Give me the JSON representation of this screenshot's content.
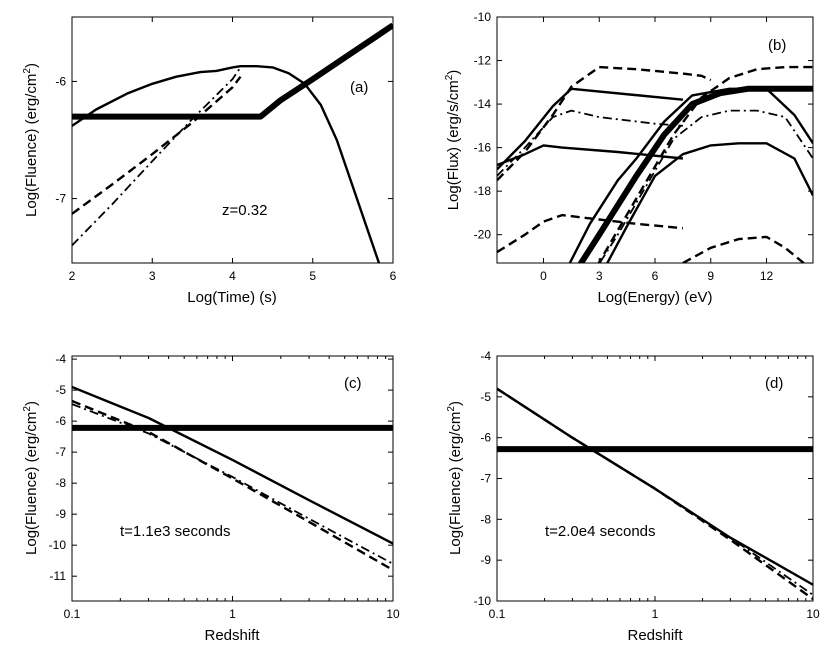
{
  "chart_data": [
    {
      "type": "line",
      "panel": "(a)",
      "xlabel": "Log(Time) (s)",
      "ylabel": "Log(Fluence) (erg/cm",
      "ylabel_sup": "2",
      "ylabel_end": ")",
      "xlim": [
        2,
        6
      ],
      "ylim": [
        -7.55,
        -5.45
      ],
      "xscale": "linear",
      "xticks": [
        2,
        3,
        4,
        5,
        6
      ],
      "xtick_labels": [
        "2",
        "3",
        "4",
        "5",
        "6"
      ],
      "yticks": [
        -7,
        -6
      ],
      "ytick_labels": [
        "-7",
        "-6"
      ],
      "annotation": "z=0.32",
      "series": [
        {
          "name": "solid",
          "style": "solid",
          "x": [
            2.0,
            2.3,
            2.7,
            3.0,
            3.3,
            3.6,
            3.8,
            4.0,
            4.1,
            4.3,
            4.5,
            4.7,
            4.9,
            5.1,
            5.3,
            5.5,
            5.7,
            5.85
          ],
          "y": [
            -6.38,
            -6.24,
            -6.1,
            -6.02,
            -5.96,
            -5.92,
            -5.91,
            -5.88,
            -5.87,
            -5.87,
            -5.88,
            -5.93,
            -6.02,
            -6.2,
            -6.5,
            -6.9,
            -7.3,
            -7.6
          ]
        },
        {
          "name": "dashed",
          "style": "dashed",
          "x": [
            2.0,
            2.5,
            3.0,
            3.5,
            4.0,
            4.1
          ],
          "y": [
            -7.13,
            -6.88,
            -6.62,
            -6.35,
            -6.05,
            -5.96
          ]
        },
        {
          "name": "dash-dot",
          "style": "dashdot",
          "x": [
            2.0,
            2.5,
            3.0,
            3.5,
            4.0,
            4.1
          ],
          "y": [
            -7.4,
            -7.05,
            -6.68,
            -6.32,
            -5.98,
            -5.88
          ]
        },
        {
          "name": "thick",
          "style": "thick",
          "x": [
            2.0,
            4.35,
            4.6,
            5.0,
            5.5,
            6.0
          ],
          "y": [
            -6.3,
            -6.3,
            -6.16,
            -5.98,
            -5.75,
            -5.52
          ]
        }
      ]
    },
    {
      "type": "line",
      "panel": "(b)",
      "xlabel": "Log(Energy) (eV)",
      "ylabel": "Log(Flux) (erg/s/cm",
      "ylabel_sup": "2",
      "ylabel_end": ")",
      "xlim": [
        -2.5,
        14.5
      ],
      "ylim": [
        -21.3,
        -10
      ],
      "xscale": "linear",
      "xticks": [
        0,
        3,
        6,
        9,
        12
      ],
      "xtick_labels": [
        "0",
        "3",
        "6",
        "9",
        "12"
      ],
      "yticks": [
        -20,
        -18,
        -16,
        -14,
        -12,
        -10
      ],
      "ytick_labels": [
        "-20",
        "-18",
        "-16",
        "-14",
        "-12",
        "-10"
      ],
      "series": [
        {
          "name": "dashed-top",
          "style": "dashed",
          "x": [
            -2.5,
            -1,
            0.5,
            1.5,
            3,
            5,
            7.5,
            8.5,
            9
          ],
          "y": [
            -17.5,
            -16.2,
            -14.5,
            -13.2,
            -12.3,
            -12.4,
            -12.6,
            -12.7,
            -12.9
          ]
        },
        {
          "name": "solid-upper",
          "style": "solid",
          "x": [
            -2.5,
            -1,
            0.5,
            1.5,
            7.5
          ],
          "y": [
            -17.0,
            -15.7,
            -14.1,
            -13.3,
            -13.8
          ]
        },
        {
          "name": "dashdot-upper",
          "style": "dashdot",
          "x": [
            -2.5,
            -1,
            0.5,
            1.5,
            3,
            6,
            7.5
          ],
          "y": [
            -17.3,
            -16.0,
            -14.6,
            -14.3,
            -14.6,
            -14.9,
            -15.0
          ]
        },
        {
          "name": "solid-lower",
          "style": "solid",
          "x": [
            -2.5,
            -1,
            0,
            1,
            4,
            7.5
          ],
          "y": [
            -16.8,
            -16.3,
            -15.9,
            -16.0,
            -16.2,
            -16.5
          ]
        },
        {
          "name": "dashed-lower",
          "style": "dashed",
          "x": [
            -2.5,
            -1,
            0,
            1,
            3,
            5,
            7.5
          ],
          "y": [
            -20.8,
            -20.0,
            -19.4,
            -19.1,
            -19.3,
            -19.5,
            -19.7
          ]
        },
        {
          "name": "thick-rise",
          "style": "thick",
          "x": [
            1.5,
            3,
            5,
            6.5,
            8,
            9.5,
            11,
            12.5,
            14.5
          ],
          "y": [
            -22.0,
            -20.0,
            -17.3,
            -15.4,
            -14.0,
            -13.5,
            -13.3,
            -13.3,
            -13.3
          ]
        },
        {
          "name": "solid-rise-a",
          "style": "solid",
          "x": [
            1.0,
            2.5,
            4,
            5,
            6.5,
            8,
            10,
            12,
            13.5,
            14.5
          ],
          "y": [
            -22.0,
            -19.5,
            -17.5,
            -16.5,
            -14.8,
            -13.6,
            -13.3,
            -13.3,
            -14.5,
            -15.8
          ]
        },
        {
          "name": "dashed-rise",
          "style": "dashed",
          "x": [
            2.5,
            4,
            5.5,
            7,
            8.5,
            10,
            11.5,
            13,
            14.5
          ],
          "y": [
            -22.0,
            -19.8,
            -17.6,
            -15.4,
            -13.7,
            -12.8,
            -12.4,
            -12.3,
            -12.3
          ]
        },
        {
          "name": "dashdot-rise",
          "style": "dashdot",
          "x": [
            2.5,
            4,
            5.5,
            7,
            8.5,
            10,
            11.5,
            13,
            14.5
          ],
          "y": [
            -22.0,
            -20.0,
            -17.8,
            -15.6,
            -14.6,
            -14.3,
            -14.3,
            -14.6,
            -16.5
          ]
        },
        {
          "name": "solid-rise-b",
          "style": "solid",
          "x": [
            3.0,
            4.5,
            6,
            7.5,
            9,
            10.5,
            12,
            13.5,
            14.5
          ],
          "y": [
            -22.0,
            -19.6,
            -17.3,
            -16.3,
            -15.9,
            -15.8,
            -15.8,
            -16.5,
            -18.2
          ]
        },
        {
          "name": "dashed-bottom",
          "style": "dashed",
          "x": [
            7.5,
            9,
            10.5,
            12,
            13,
            14
          ],
          "y": [
            -21.3,
            -20.6,
            -20.2,
            -20.1,
            -20.6,
            -21.3
          ]
        }
      ]
    },
    {
      "type": "line",
      "panel": "(c)",
      "xlabel": "Redshift",
      "ylabel": "Log(Fluence) (erg/cm",
      "ylabel_sup": "2",
      "ylabel_end": ")",
      "xlim": [
        0.1,
        10
      ],
      "ylim": [
        -11.8,
        -3.9
      ],
      "xscale": "log",
      "xticks": [
        0.1,
        1,
        10
      ],
      "xtick_labels": [
        "0.1",
        "1",
        "10"
      ],
      "yticks": [
        -11,
        -10,
        -9,
        -8,
        -7,
        -6,
        -5,
        -4
      ],
      "ytick_labels": [
        "-11",
        "-10",
        "-9",
        "-8",
        "-7",
        "-6",
        "-5",
        "-4"
      ],
      "annotation": "t=1.1e3 seconds",
      "series": [
        {
          "name": "thick",
          "style": "thick",
          "x": [
            0.1,
            10
          ],
          "y": [
            -6.22,
            -6.22
          ]
        },
        {
          "name": "solid",
          "style": "solid",
          "x": [
            0.1,
            0.3,
            1,
            3,
            10
          ],
          "y": [
            -4.9,
            -5.9,
            -7.25,
            -8.55,
            -9.95
          ]
        },
        {
          "name": "dashed",
          "style": "dashed",
          "x": [
            0.1,
            0.3,
            1,
            3,
            10
          ],
          "y": [
            -5.35,
            -6.35,
            -7.85,
            -9.25,
            -10.8
          ]
        },
        {
          "name": "dash-dot",
          "style": "dashdot",
          "x": [
            0.1,
            0.3,
            1,
            3,
            10
          ],
          "y": [
            -5.45,
            -6.4,
            -7.8,
            -9.15,
            -10.6
          ]
        }
      ]
    },
    {
      "type": "line",
      "panel": "(d)",
      "xlabel": "Redshift",
      "ylabel": "Log(Fluence) (erg/cm",
      "ylabel_sup": "2",
      "ylabel_end": ")",
      "xlim": [
        0.1,
        10
      ],
      "ylim": [
        -10,
        -4
      ],
      "xscale": "log",
      "xticks": [
        0.1,
        1,
        10
      ],
      "xtick_labels": [
        "0.1",
        "1",
        "10"
      ],
      "yticks": [
        -10,
        -9,
        -8,
        -7,
        -6,
        -5,
        -4
      ],
      "ytick_labels": [
        "-10",
        "-9",
        "-8",
        "-7",
        "-6",
        "-5",
        "-4"
      ],
      "annotation": "t=2.0e4 seconds",
      "series": [
        {
          "name": "thick",
          "style": "thick",
          "x": [
            0.1,
            10
          ],
          "y": [
            -6.28,
            -6.28
          ]
        },
        {
          "name": "solid",
          "style": "solid",
          "x": [
            0.1,
            0.3,
            1,
            3,
            10
          ],
          "y": [
            -4.8,
            -6.0,
            -7.25,
            -8.45,
            -9.6
          ]
        },
        {
          "name": "dashed",
          "style": "dashed",
          "x": [
            0.1,
            0.3,
            1,
            3,
            10
          ],
          "y": [
            -4.8,
            -6.0,
            -7.25,
            -8.5,
            -9.95
          ]
        },
        {
          "name": "dash-dot",
          "style": "dashdot",
          "x": [
            0.1,
            0.3,
            1,
            3,
            10
          ],
          "y": [
            -4.8,
            -6.0,
            -7.25,
            -8.45,
            -9.85
          ]
        }
      ]
    }
  ]
}
